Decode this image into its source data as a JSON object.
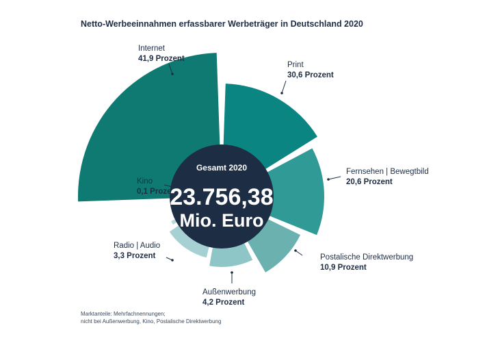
{
  "title": "Netto-Werbeeinnahmen erfassbarer Werbeträger in Deutschland 2020",
  "center": {
    "label": "Gesamt 2020",
    "value": "23.756,38",
    "unit": "Mio. Euro"
  },
  "footnote": {
    "line1": "Marktanteile: Mehrfachnennungen;",
    "line2": "nicht bei Außenwerbung, Kino, Postalische Direktwerbung"
  },
  "colors": {
    "text": "#1d2d44",
    "center": "#1d2d44",
    "internet": "#0f7a72",
    "print": "#0b8582",
    "fernsehen": "#2f9a96",
    "post": "#6bb1b0",
    "aussen": "#8ec5c6",
    "radio": "#a6d0d2",
    "kino": "#b8d8db"
  },
  "chart_data": {
    "type": "pie",
    "title": "Netto-Werbeeinnahmen erfassbarer Werbeträger in Deutschland 2020",
    "unit": "Prozent",
    "total_label": "Gesamt 2020",
    "total": "23.756,38 Mio. Euro",
    "series": [
      {
        "name": "Internet",
        "value": 41.9,
        "display": "41,9 Prozent"
      },
      {
        "name": "Print",
        "value": 30.6,
        "display": "30,6 Prozent"
      },
      {
        "name": "Fernsehen | Bewegtbild",
        "value": 20.6,
        "display": "20,6 Prozent"
      },
      {
        "name": "Postalische Direktwerbung",
        "value": 10.9,
        "display": "10,9 Prozent"
      },
      {
        "name": "Außenwerbung",
        "value": 4.2,
        "display": "4,2 Prozent"
      },
      {
        "name": "Radio | Audio",
        "value": 3.3,
        "display": "3,3 Prozent"
      },
      {
        "name": "Kino",
        "value": 0.1,
        "display": "0,1 Prozent"
      }
    ]
  }
}
